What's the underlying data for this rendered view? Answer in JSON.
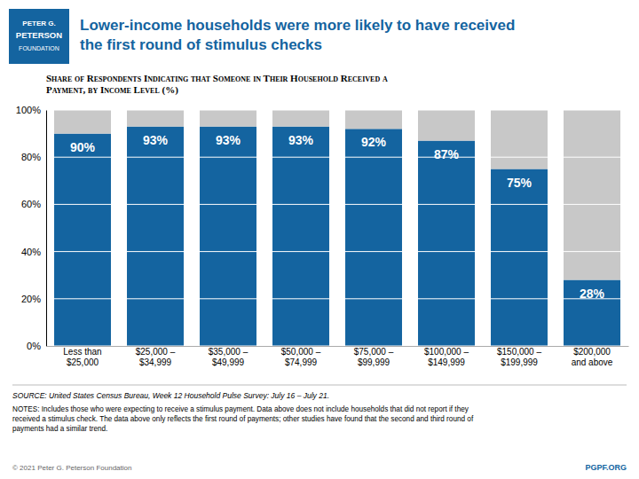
{
  "chart_data": {
    "type": "bar",
    "title": "Lower-income households were more likely to have received\nthe first round of stimulus checks",
    "subtitle": "Share of Respondents Indicating that Someone in Their Household Received a\nPayment, by Income Level (%)",
    "logo_text": [
      "PETER G.",
      "PETERSON",
      "FOUNDATION"
    ],
    "categories": [
      "Less than\n$25,000",
      "$25,000 –\n$34,999",
      "$35,000 –\n$49,999",
      "$50,000 –\n$74,999",
      "$75,000 –\n$99,999",
      "$100,000 –\n$149,999",
      "$150,000 –\n$199,999",
      "$200,000\nand above"
    ],
    "series": [
      {
        "color": "#1464a0",
        "values": [
          90,
          93,
          93,
          93,
          92,
          87,
          75,
          28
        ],
        "value_labels": [
          "90%",
          "93%",
          "93%",
          "93%",
          "92%",
          "87%",
          "75%",
          "28%"
        ]
      },
      {
        "color": "#c8c8c8",
        "values": [
          10,
          7,
          7,
          7,
          8,
          13,
          25,
          72
        ]
      }
    ],
    "stacked": true,
    "data_labels": true,
    "color": "#1464a0",
    "ylim": [
      0,
      100
    ],
    "yticks": [
      {
        "value": 0,
        "label": "0%"
      },
      {
        "value": 20,
        "label": "20%"
      },
      {
        "value": 40,
        "label": "40%"
      },
      {
        "value": 60,
        "label": "60%"
      },
      {
        "value": 80,
        "label": "80%"
      },
      {
        "value": 100,
        "label": "100%"
      }
    ],
    "grid": true,
    "source": "SOURCE: United States Census Bureau, Week 12 Household Pulse Survey: July 16 – July 21.",
    "notes": "NOTES: Includes those who were expecting to receive a stimulus payment. Data above does not include households that did not report if they\nreceived a stimulus check. The data above only reflects the first round of payments; other studies have found that the second and third round of\npayments had a similar trend.",
    "copyright": "© 2021 Peter G. Peterson Foundation",
    "website": "PGPF.ORG"
  }
}
